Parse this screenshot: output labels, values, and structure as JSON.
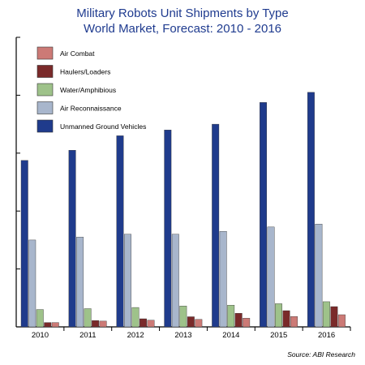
{
  "chart_data": {
    "type": "bar",
    "title": "Military Robots Unit Shipments by Type",
    "subtitle": "World Market, Forecast: 2010 - 2016",
    "xlabel": "",
    "ylabel": "",
    "ylim": [
      0,
      100
    ],
    "categories": [
      "2010",
      "2011",
      "2012",
      "2013",
      "2014",
      "2015",
      "2016"
    ],
    "series": [
      {
        "name": "Unmanned Ground Vehicles",
        "color": "#1f3b8c",
        "values": [
          57.5,
          61,
          66,
          68,
          70,
          77.5,
          81
        ]
      },
      {
        "name": "Air Reconnaissance",
        "color": "#a8b6cc",
        "values": [
          30,
          31,
          32,
          32,
          33,
          34.5,
          35.5
        ]
      },
      {
        "name": "Water/Amphibious",
        "color": "#9ec28a",
        "values": [
          6,
          6.3,
          6.7,
          7.2,
          7.5,
          8,
          8.7
        ]
      },
      {
        "name": "Haulers/Loaders",
        "color": "#7a2a2a",
        "values": [
          1.5,
          2.2,
          2.8,
          3.5,
          4.7,
          5.6,
          7
        ]
      },
      {
        "name": "Air Combat",
        "color": "#cc7a76",
        "values": [
          1.5,
          2,
          2.3,
          2.6,
          3,
          3.6,
          4.2
        ]
      }
    ],
    "legend_order": [
      "Air Combat",
      "Haulers/Loaders",
      "Water/Amphibious",
      "Air Reconnaissance",
      "Unmanned Ground Vehicles"
    ],
    "legend_position": "top-left",
    "grid": false
  },
  "source": "Source: ABI Research"
}
